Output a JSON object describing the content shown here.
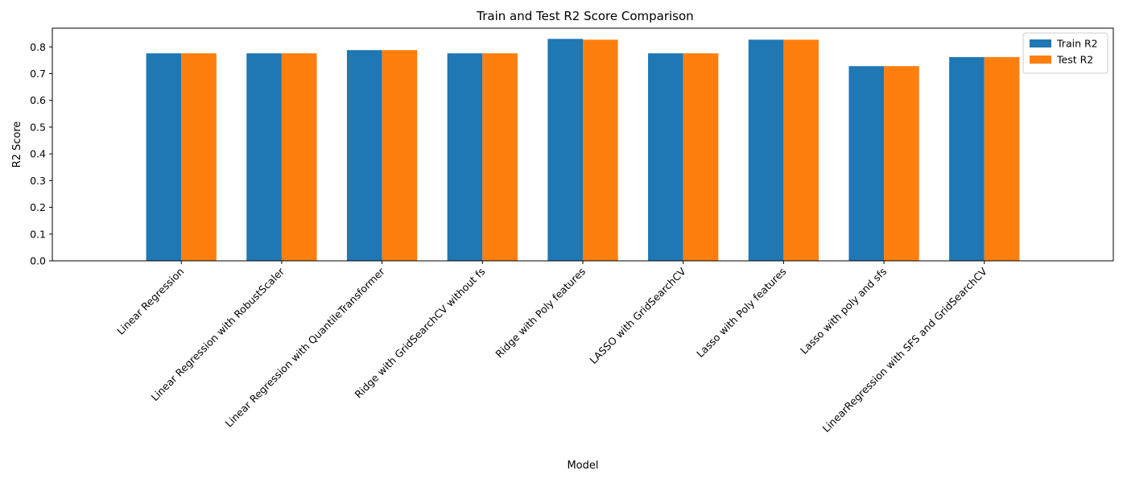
{
  "chart_data": {
    "type": "bar",
    "title": "Train and Test R2 Score Comparison",
    "xlabel": "Model",
    "ylabel": "R2 Score",
    "ylim": [
      0,
      0.87
    ],
    "yticks": [
      0.0,
      0.1,
      0.2,
      0.3,
      0.4,
      0.5,
      0.6,
      0.7,
      0.8
    ],
    "ytick_labels": [
      "0.0",
      "0.1",
      "0.2",
      "0.3",
      "0.4",
      "0.5",
      "0.6",
      "0.7",
      "0.8"
    ],
    "legend_position": "top-right",
    "grid": false,
    "categories": [
      "Linear Regression",
      "Linear Regression with RobustScaler",
      "Linear Regression with QuantileTransformer",
      "Ridge with GridSearchCV without fs",
      "Ridge with Poly features",
      "LASSO with GridSearchCV",
      "Lasso with Poly features",
      "Lasso with poly and sfs",
      "LinearRegression with SFS and GridSearchCV"
    ],
    "series": [
      {
        "name": "Train R2",
        "color": "#1f77b4",
        "values": [
          0.776,
          0.776,
          0.788,
          0.776,
          0.83,
          0.776,
          0.827,
          0.728,
          0.762
        ]
      },
      {
        "name": "Test R2",
        "color": "#ff7f0e",
        "values": [
          0.776,
          0.776,
          0.788,
          0.776,
          0.827,
          0.776,
          0.827,
          0.728,
          0.762
        ]
      }
    ]
  }
}
